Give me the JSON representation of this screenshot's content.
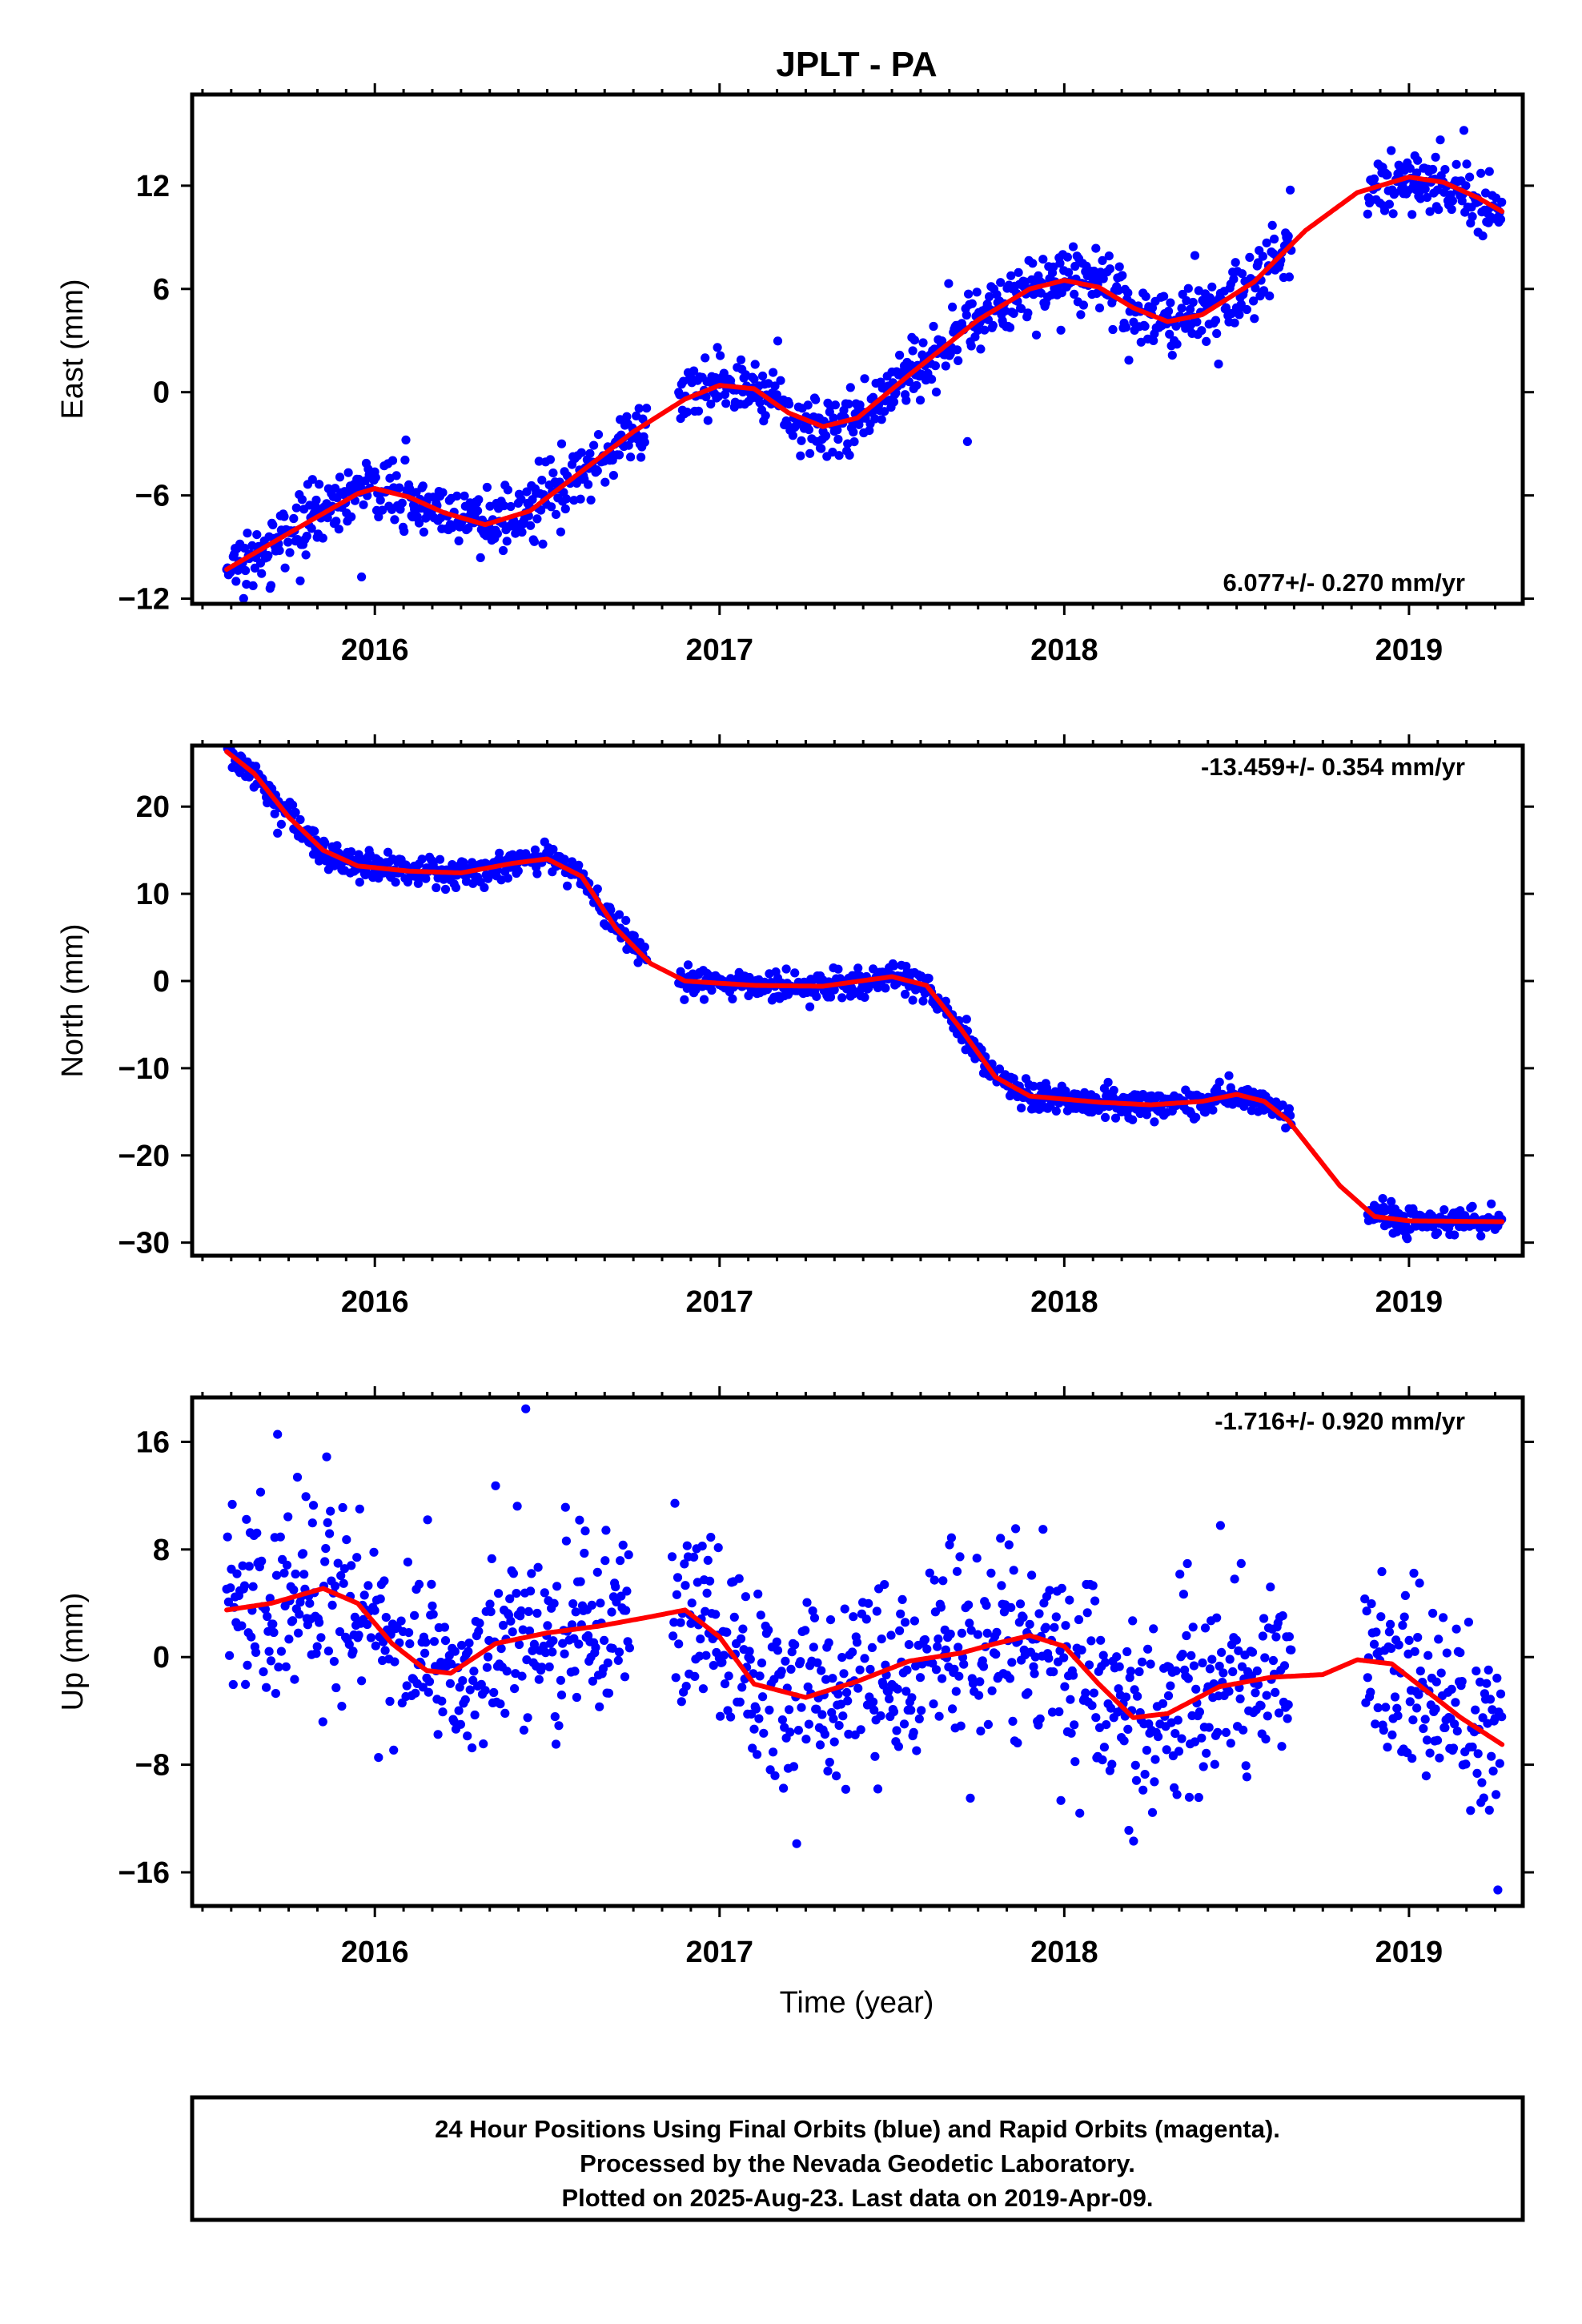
{
  "title": "JPLT - PA",
  "xlabel": "Time (year)",
  "colors": {
    "points": "#0000ff",
    "fit": "#ff0000",
    "frame": "#000000"
  },
  "footer": {
    "line1": "24 Hour Positions Using Final Orbits (blue) and Rapid Orbits (magenta).",
    "line2": "Processed by the Nevada Geodetic Laboratory.",
    "line3": "Plotted on 2025-Aug-23. Last data on 2019-Apr-09."
  },
  "chart_data": [
    {
      "type": "scatter",
      "ylabel": "East (mm)",
      "rate": "6.077+/- 0.270 mm/yr",
      "xlim": [
        2015.47,
        2019.33
      ],
      "ylim": [
        -12.3,
        17.3
      ],
      "x_ticks": [
        2016,
        2017,
        2018,
        2019
      ],
      "y_ticks": [
        -12,
        -6,
        0,
        6,
        12
      ],
      "grid": false,
      "series": [
        {
          "role": "daily positions",
          "style": "points",
          "noise": 0.9,
          "gaps": [
            [
              2016.79,
              2016.88
            ],
            [
              2018.66,
              2018.88
            ]
          ],
          "trend": [
            [
              2015.57,
              -10.3
            ],
            [
              2015.75,
              -8.2
            ],
            [
              2015.95,
              -5.9
            ],
            [
              2016.0,
              -5.6
            ],
            [
              2016.1,
              -6.1
            ],
            [
              2016.2,
              -7.0
            ],
            [
              2016.32,
              -7.7
            ],
            [
              2016.45,
              -6.9
            ],
            [
              2016.6,
              -4.6
            ],
            [
              2016.75,
              -2.3
            ],
            [
              2016.9,
              -0.4
            ],
            [
              2017.0,
              0.4
            ],
            [
              2017.1,
              0.2
            ],
            [
              2017.2,
              -1.2
            ],
            [
              2017.3,
              -2.0
            ],
            [
              2017.4,
              -1.5
            ],
            [
              2017.55,
              1.0
            ],
            [
              2017.75,
              4.2
            ],
            [
              2017.9,
              6.0
            ],
            [
              2018.0,
              6.5
            ],
            [
              2018.1,
              6.1
            ],
            [
              2018.2,
              4.9
            ],
            [
              2018.3,
              4.1
            ],
            [
              2018.4,
              4.5
            ],
            [
              2018.55,
              6.4
            ],
            [
              2018.7,
              9.4
            ],
            [
              2018.85,
              11.6
            ],
            [
              2019.0,
              12.5
            ],
            [
              2019.1,
              12.2
            ],
            [
              2019.2,
              11.3
            ],
            [
              2019.27,
              10.5
            ]
          ]
        },
        {
          "role": "model fit",
          "style": "line",
          "points": [
            [
              2015.57,
              -10.3
            ],
            [
              2015.75,
              -8.2
            ],
            [
              2015.95,
              -5.9
            ],
            [
              2016.0,
              -5.6
            ],
            [
              2016.1,
              -6.1
            ],
            [
              2016.2,
              -7.0
            ],
            [
              2016.32,
              -7.7
            ],
            [
              2016.45,
              -6.9
            ],
            [
              2016.6,
              -4.6
            ],
            [
              2016.75,
              -2.3
            ],
            [
              2016.9,
              -0.4
            ],
            [
              2017.0,
              0.4
            ],
            [
              2017.1,
              0.2
            ],
            [
              2017.2,
              -1.2
            ],
            [
              2017.3,
              -2.0
            ],
            [
              2017.4,
              -1.5
            ],
            [
              2017.55,
              1.0
            ],
            [
              2017.75,
              4.2
            ],
            [
              2017.9,
              6.0
            ],
            [
              2018.0,
              6.5
            ],
            [
              2018.1,
              6.1
            ],
            [
              2018.2,
              4.9
            ],
            [
              2018.3,
              4.1
            ],
            [
              2018.4,
              4.5
            ],
            [
              2018.55,
              6.4
            ],
            [
              2018.7,
              9.4
            ],
            [
              2018.85,
              11.6
            ],
            [
              2019.0,
              12.5
            ],
            [
              2019.1,
              12.2
            ],
            [
              2019.2,
              11.3
            ],
            [
              2019.27,
              10.5
            ]
          ]
        }
      ]
    },
    {
      "type": "scatter",
      "ylabel": "North (mm)",
      "rate": "-13.459+/- 0.354 mm/yr",
      "xlim": [
        2015.47,
        2019.33
      ],
      "ylim": [
        -31.5,
        27.0
      ],
      "x_ticks": [
        2016,
        2017,
        2018,
        2019
      ],
      "y_ticks": [
        -30,
        -20,
        -10,
        0,
        10,
        20
      ],
      "grid": false,
      "series": [
        {
          "role": "daily positions",
          "style": "points",
          "noise": 0.8,
          "gaps": [
            [
              2016.79,
              2016.88
            ],
            [
              2018.66,
              2018.88
            ]
          ],
          "trend": [
            [
              2015.57,
              26.3
            ],
            [
              2015.65,
              23.8
            ],
            [
              2015.75,
              18.8
            ],
            [
              2015.85,
              15.0
            ],
            [
              2015.95,
              13.2
            ],
            [
              2016.1,
              12.6
            ],
            [
              2016.25,
              12.4
            ],
            [
              2016.4,
              13.5
            ],
            [
              2016.5,
              14.0
            ],
            [
              2016.6,
              12.0
            ],
            [
              2016.7,
              6.0
            ],
            [
              2016.8,
              2.0
            ],
            [
              2016.9,
              0.0
            ],
            [
              2017.1,
              -0.5
            ],
            [
              2017.3,
              -0.6
            ],
            [
              2017.5,
              0.5
            ],
            [
              2017.6,
              -0.5
            ],
            [
              2017.7,
              -5.5
            ],
            [
              2017.8,
              -11.0
            ],
            [
              2017.9,
              -13.2
            ],
            [
              2018.1,
              -13.9
            ],
            [
              2018.25,
              -14.2
            ],
            [
              2018.4,
              -13.8
            ],
            [
              2018.5,
              -13.0
            ],
            [
              2018.58,
              -13.8
            ],
            [
              2018.65,
              -16.0
            ],
            [
              2018.8,
              -23.5
            ],
            [
              2018.9,
              -27.0
            ],
            [
              2019.0,
              -27.5
            ],
            [
              2019.27,
              -27.6
            ]
          ]
        },
        {
          "role": "model fit",
          "style": "line",
          "points": [
            [
              2015.57,
              26.3
            ],
            [
              2015.65,
              23.8
            ],
            [
              2015.75,
              18.8
            ],
            [
              2015.85,
              15.0
            ],
            [
              2015.95,
              13.2
            ],
            [
              2016.1,
              12.6
            ],
            [
              2016.25,
              12.4
            ],
            [
              2016.4,
              13.5
            ],
            [
              2016.5,
              14.0
            ],
            [
              2016.6,
              12.0
            ],
            [
              2016.7,
              6.0
            ],
            [
              2016.8,
              2.0
            ],
            [
              2016.9,
              0.0
            ],
            [
              2017.1,
              -0.5
            ],
            [
              2017.3,
              -0.6
            ],
            [
              2017.5,
              0.5
            ],
            [
              2017.6,
              -0.5
            ],
            [
              2017.7,
              -5.5
            ],
            [
              2017.8,
              -11.0
            ],
            [
              2017.9,
              -13.2
            ],
            [
              2018.1,
              -13.9
            ],
            [
              2018.25,
              -14.2
            ],
            [
              2018.4,
              -13.8
            ],
            [
              2018.5,
              -13.0
            ],
            [
              2018.58,
              -13.8
            ],
            [
              2018.65,
              -16.0
            ],
            [
              2018.8,
              -23.5
            ],
            [
              2018.9,
              -27.0
            ],
            [
              2019.0,
              -27.5
            ],
            [
              2019.27,
              -27.6
            ]
          ]
        }
      ]
    },
    {
      "type": "scatter",
      "ylabel": "Up (mm)",
      "rate": "-1.716+/- 0.920 mm/yr",
      "xlim": [
        2015.47,
        2019.33
      ],
      "ylim": [
        -18.5,
        19.3
      ],
      "x_ticks": [
        2016,
        2017,
        2018,
        2019
      ],
      "y_ticks": [
        -16,
        -8,
        0,
        8,
        16
      ],
      "grid": false,
      "series": [
        {
          "role": "daily positions",
          "style": "points",
          "noise": 3.6,
          "gaps": [
            [
              2016.74,
              2016.86
            ],
            [
              2018.66,
              2018.87
            ]
          ],
          "trend": [
            [
              2015.57,
              3.5
            ],
            [
              2015.7,
              4.0
            ],
            [
              2015.85,
              5.1
            ],
            [
              2015.95,
              4.0
            ],
            [
              2016.05,
              1.0
            ],
            [
              2016.15,
              -1.0
            ],
            [
              2016.22,
              -1.2
            ],
            [
              2016.35,
              1.0
            ],
            [
              2016.5,
              1.8
            ],
            [
              2016.65,
              2.3
            ],
            [
              2016.8,
              3.0
            ],
            [
              2016.9,
              3.5
            ],
            [
              2017.0,
              1.5
            ],
            [
              2017.1,
              -2.0
            ],
            [
              2017.25,
              -3.0
            ],
            [
              2017.4,
              -1.8
            ],
            [
              2017.55,
              -0.3
            ],
            [
              2017.7,
              0.3
            ],
            [
              2017.8,
              1.0
            ],
            [
              2017.9,
              1.6
            ],
            [
              2018.0,
              0.8
            ],
            [
              2018.1,
              -2.0
            ],
            [
              2018.2,
              -4.5
            ],
            [
              2018.3,
              -4.2
            ],
            [
              2018.45,
              -2.2
            ],
            [
              2018.6,
              -1.5
            ],
            [
              2018.75,
              -1.3
            ],
            [
              2018.85,
              -0.2
            ],
            [
              2018.95,
              -0.5
            ],
            [
              2019.05,
              -2.5
            ],
            [
              2019.15,
              -4.5
            ],
            [
              2019.27,
              -6.5
            ]
          ]
        },
        {
          "role": "model fit",
          "style": "line",
          "points": [
            [
              2015.57,
              3.5
            ],
            [
              2015.7,
              4.0
            ],
            [
              2015.85,
              5.1
            ],
            [
              2015.95,
              4.0
            ],
            [
              2016.05,
              1.0
            ],
            [
              2016.15,
              -1.0
            ],
            [
              2016.22,
              -1.2
            ],
            [
              2016.35,
              1.0
            ],
            [
              2016.5,
              1.8
            ],
            [
              2016.65,
              2.3
            ],
            [
              2016.8,
              3.0
            ],
            [
              2016.9,
              3.5
            ],
            [
              2017.0,
              1.5
            ],
            [
              2017.1,
              -2.0
            ],
            [
              2017.25,
              -3.0
            ],
            [
              2017.4,
              -1.8
            ],
            [
              2017.55,
              -0.3
            ],
            [
              2017.7,
              0.3
            ],
            [
              2017.8,
              1.0
            ],
            [
              2017.9,
              1.6
            ],
            [
              2018.0,
              0.8
            ],
            [
              2018.1,
              -2.0
            ],
            [
              2018.2,
              -4.5
            ],
            [
              2018.3,
              -4.2
            ],
            [
              2018.45,
              -2.2
            ],
            [
              2018.6,
              -1.5
            ],
            [
              2018.75,
              -1.3
            ],
            [
              2018.85,
              -0.2
            ],
            [
              2018.95,
              -0.5
            ],
            [
              2019.05,
              -2.5
            ],
            [
              2019.15,
              -4.5
            ],
            [
              2019.27,
              -6.5
            ]
          ]
        }
      ]
    }
  ]
}
